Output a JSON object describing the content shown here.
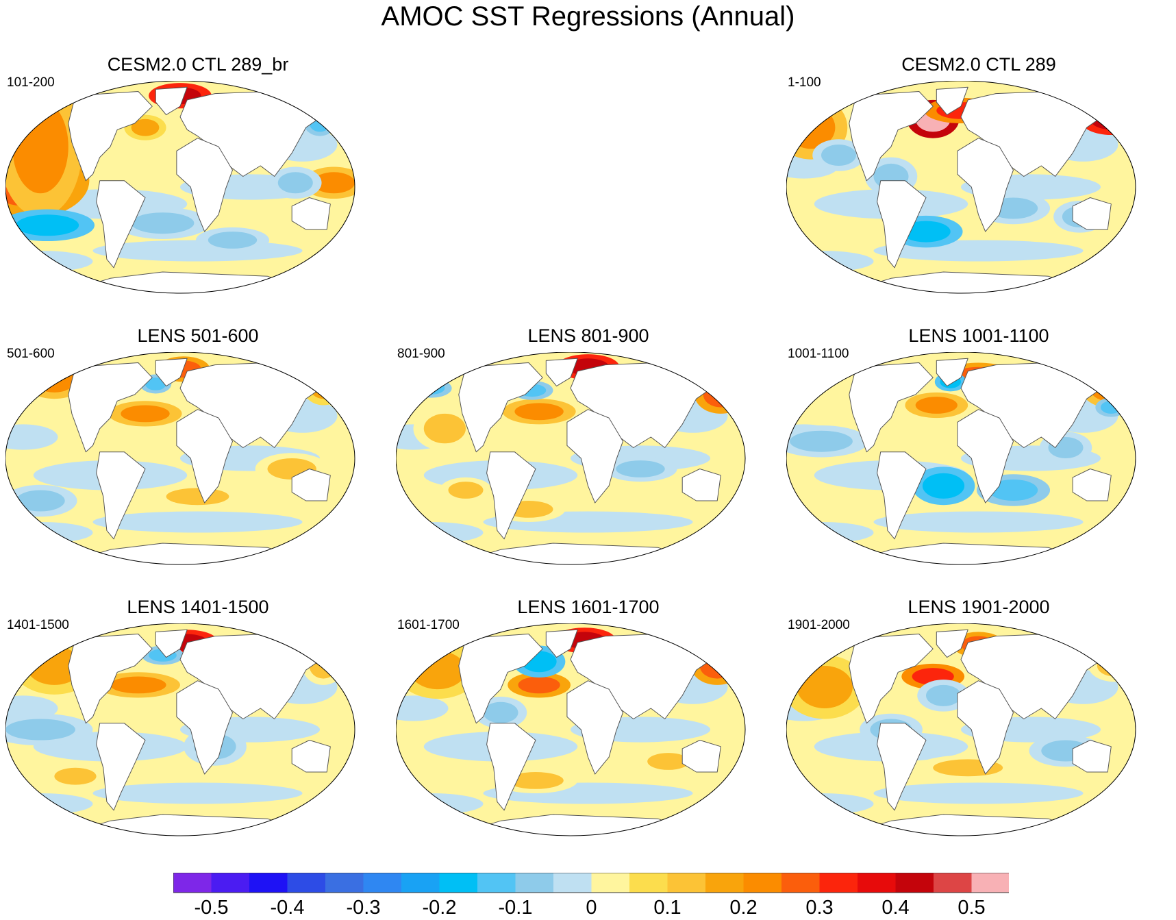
{
  "chart_data": {
    "type": "contour-map-panels",
    "title": "AMOC SST Regressions (Annual)",
    "projection": "Robinson (global)",
    "colorbar": {
      "levels": [
        -0.5,
        -0.45,
        -0.4,
        -0.35,
        -0.3,
        -0.25,
        -0.2,
        -0.15,
        -0.1,
        -0.05,
        0,
        0.05,
        0.1,
        0.15,
        0.2,
        0.25,
        0.3,
        0.35,
        0.4,
        0.45,
        0.5
      ],
      "tick_labels": [
        "-0.5",
        "-0.4",
        "-0.3",
        "-0.2",
        "-0.1",
        "0",
        "0.1",
        "0.2",
        "0.3",
        "0.4",
        "0.5"
      ],
      "colors": [
        "#7e27e8",
        "#4b1cf2",
        "#1e12f5",
        "#2d4ce6",
        "#3a6fe2",
        "#2f87f2",
        "#19a2f4",
        "#00bff5",
        "#52c4f4",
        "#8ecbea",
        "#bfe0f2",
        "#fff59e",
        "#fcdd4d",
        "#fcc336",
        "#f9a40c",
        "#fb8c00",
        "#fb5e0c",
        "#fc250c",
        "#e70b0b",
        "#c4040b",
        "#dd4545",
        "#f8b1b5"
      ]
    },
    "panels": [
      {
        "title": "CESM2.0 CTL 289_br",
        "period": "101-200"
      },
      {
        "title": "CESM2.0 CTL 289",
        "period": "1-100"
      },
      {
        "title": "LENS 501-600",
        "period": "501-600"
      },
      {
        "title": "LENS 801-900",
        "period": "801-900"
      },
      {
        "title": "LENS 1001-1100",
        "period": "1001-1100"
      },
      {
        "title": "LENS 1401-1500",
        "period": "1401-1500"
      },
      {
        "title": "LENS 1601-1700",
        "period": "1601-1700"
      },
      {
        "title": "LENS 1901-2000",
        "period": "1901-2000"
      }
    ]
  }
}
